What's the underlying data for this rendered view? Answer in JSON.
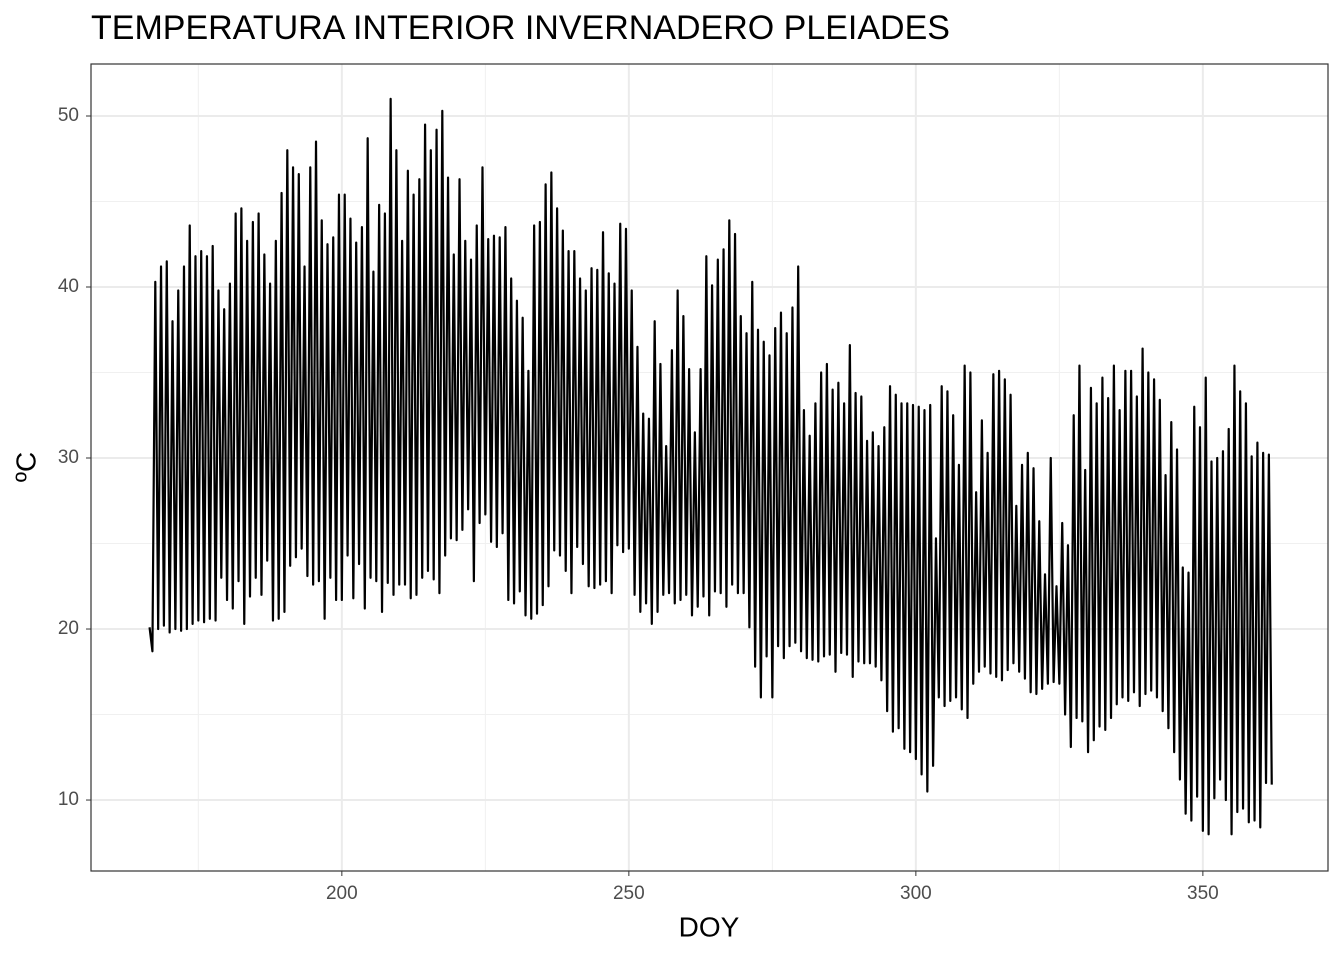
{
  "chart_data": {
    "type": "line",
    "title": "TEMPERATURA INTERIOR INVERNADERO PLEIADES",
    "x_label": "DOY",
    "y_label": "ºC",
    "xlim": [
      156.3,
      371.8
    ],
    "ylim": [
      5.85,
      53.04
    ],
    "xticks": [
      200,
      250,
      300,
      350
    ],
    "yticks": [
      10,
      20,
      30,
      40,
      50
    ],
    "grid": true,
    "x": [
      166.5,
      167,
      167.5,
      168,
      168.5,
      169,
      169.5,
      170,
      170.5,
      171,
      171.5,
      172,
      172.5,
      173,
      173.5,
      174,
      174.5,
      175,
      175.5,
      176,
      176.5,
      177,
      177.5,
      178,
      178.5,
      179,
      179.5,
      180,
      180.5,
      181,
      181.5,
      182,
      182.5,
      183,
      183.5,
      184,
      184.5,
      185,
      185.5,
      186,
      186.5,
      187,
      187.5,
      188,
      188.5,
      189,
      189.5,
      190,
      190.5,
      191,
      191.5,
      192,
      192.5,
      193,
      193.5,
      194,
      194.5,
      195,
      195.5,
      196,
      196.5,
      197,
      197.5,
      198,
      198.5,
      199,
      199.5,
      200,
      200.5,
      201,
      201.5,
      202,
      202.5,
      203,
      203.5,
      204,
      204.5,
      205,
      205.5,
      206,
      206.5,
      207,
      207.5,
      208,
      208.5,
      209,
      209.5,
      210,
      210.5,
      211,
      211.5,
      212,
      212.5,
      213,
      213.5,
      214,
      214.5,
      215,
      215.5,
      216,
      216.5,
      217,
      217.5,
      218,
      218.5,
      219,
      219.5,
      220,
      220.5,
      221,
      221.5,
      222,
      222.5,
      223,
      223.5,
      224,
      224.5,
      225,
      225.5,
      226,
      226.5,
      227,
      227.5,
      228,
      228.5,
      229,
      229.5,
      230,
      230.5,
      231,
      231.5,
      232,
      232.5,
      233,
      233.5,
      234,
      234.5,
      235,
      235.5,
      236,
      236.5,
      237,
      237.5,
      238,
      238.5,
      239,
      239.5,
      240,
      240.5,
      241,
      241.5,
      242,
      242.5,
      243,
      243.5,
      244,
      244.5,
      245,
      245.5,
      246,
      246.5,
      247,
      247.5,
      248,
      248.5,
      249,
      249.5,
      250,
      250.5,
      251,
      251.5,
      252,
      252.5,
      253,
      253.5,
      254,
      254.5,
      255,
      255.5,
      256,
      256.5,
      257,
      257.5,
      258,
      258.5,
      259,
      259.5,
      260,
      260.5,
      261,
      261.5,
      262,
      262.5,
      263,
      263.5,
      264,
      264.5,
      265,
      265.5,
      266,
      266.5,
      267,
      267.5,
      268,
      268.5,
      269,
      269.5,
      270,
      270.5,
      271,
      271.5,
      272,
      272.5,
      273,
      273.5,
      274,
      274.5,
      275,
      275.5,
      276,
      276.5,
      277,
      277.5,
      278,
      278.5,
      279,
      279.5,
      280,
      280.5,
      281,
      281.5,
      282,
      282.5,
      283,
      283.5,
      284,
      284.5,
      285,
      285.5,
      286,
      286.5,
      287,
      287.5,
      288,
      288.5,
      289,
      289.5,
      290,
      290.5,
      291,
      291.5,
      292,
      292.5,
      293,
      293.5,
      294,
      294.5,
      295,
      295.5,
      296,
      296.5,
      297,
      297.5,
      298,
      298.5,
      299,
      299.5,
      300,
      300.5,
      301,
      301.5,
      302,
      302.5,
      303,
      303.5,
      304,
      304.5,
      305,
      305.5,
      306,
      306.5,
      307,
      307.5,
      308,
      308.5,
      309,
      309.5,
      310,
      310.5,
      311,
      311.5,
      312,
      312.5,
      313,
      313.5,
      314,
      314.5,
      315,
      315.5,
      316,
      316.5,
      317,
      317.5,
      318,
      318.5,
      319,
      319.5,
      320,
      320.5,
      321,
      321.5,
      322,
      322.5,
      323,
      323.5,
      324,
      324.5,
      325,
      325.5,
      326,
      326.5,
      327,
      327.5,
      328,
      328.5,
      329,
      329.5,
      330,
      330.5,
      331,
      331.5,
      332,
      332.5,
      333,
      333.5,
      334,
      334.5,
      335,
      335.5,
      336,
      336.5,
      337,
      337.5,
      338,
      338.5,
      339,
      339.5,
      340,
      340.5,
      341,
      341.5,
      342,
      342.5,
      343,
      343.5,
      344,
      344.5,
      345,
      345.5,
      346,
      346.5,
      347,
      347.5,
      348,
      348.5,
      349,
      349.5,
      350,
      350.5,
      351,
      351.5,
      352,
      352.5,
      353,
      353.5,
      354,
      354.5,
      355,
      355.5,
      356,
      356.5,
      357,
      357.5,
      358,
      358.5,
      359,
      359.5,
      360,
      360.5,
      361,
      361.5,
      362
    ],
    "series": [
      {
        "color": "#000000",
        "values": [
          20.1,
          18.7,
          40.3,
          20,
          41.2,
          20.2,
          41.5,
          19.8,
          38,
          20,
          39.8,
          19.9,
          41.2,
          20,
          43.6,
          20.3,
          41.8,
          20.5,
          42.1,
          20.4,
          41.8,
          20.6,
          42.4,
          20.5,
          39.8,
          23,
          38.7,
          21.7,
          40.2,
          21.2,
          44.3,
          22.8,
          44.6,
          20.3,
          42.7,
          21.9,
          43.8,
          23,
          44.3,
          22,
          41.9,
          24,
          40.2,
          20.5,
          42.7,
          20.6,
          45.5,
          21,
          48,
          23.7,
          47,
          24.2,
          46.6,
          24.7,
          41.2,
          23.1,
          47,
          22.6,
          48.5,
          22.8,
          43.9,
          20.6,
          42.5,
          23,
          42.9,
          21.7,
          45.4,
          21.7,
          45.4,
          24.3,
          44,
          21.8,
          42.6,
          23.8,
          43.5,
          21.2,
          48.7,
          23,
          40.9,
          22.8,
          44.8,
          21,
          44.3,
          22.7,
          51,
          22,
          48,
          22.6,
          42.7,
          22.6,
          46.8,
          21.8,
          45.4,
          22,
          46.3,
          23,
          49.5,
          23.4,
          48,
          22.9,
          49.2,
          22.1,
          50.3,
          24.3,
          46.4,
          25.3,
          41.9,
          25.2,
          46.3,
          25.8,
          42.7,
          27,
          41.6,
          22.8,
          43.6,
          26.2,
          47,
          26.7,
          42.8,
          25.1,
          43,
          24.8,
          42.9,
          25.6,
          43.5,
          21.7,
          40.5,
          21.5,
          39.2,
          22.2,
          38.2,
          20.8,
          35.1,
          20.6,
          43.6,
          20.9,
          43.8,
          21.4,
          46,
          22.5,
          46.7,
          24.6,
          44.6,
          24.3,
          43.3,
          23.4,
          42.1,
          22.1,
          42.1,
          24.8,
          40.5,
          23.8,
          39.8,
          22.5,
          41.1,
          22.4,
          41,
          22.6,
          43.2,
          22.8,
          40.8,
          22.1,
          40.2,
          24.9,
          43.7,
          24.5,
          43.4,
          24.7,
          39.8,
          22,
          36.5,
          21,
          32.6,
          21.5,
          32.3,
          20.3,
          38,
          21,
          35.5,
          22,
          30.7,
          22.1,
          36.3,
          21.5,
          39.8,
          21.7,
          38.3,
          22,
          35.2,
          20.8,
          31.5,
          21.3,
          35.2,
          21.9,
          41.8,
          20.8,
          40.1,
          22.2,
          41.6,
          22.1,
          42.2,
          21.3,
          43.9,
          22.6,
          43.1,
          22.1,
          38.3,
          22.1,
          37.3,
          20.1,
          40.3,
          17.8,
          37.5,
          16,
          36.8,
          18.4,
          36,
          16,
          37.6,
          19,
          38.5,
          18.3,
          37.3,
          19,
          38.8,
          19.2,
          41.2,
          18.7,
          32.8,
          18.3,
          31.3,
          18.2,
          33.2,
          18.1,
          35,
          18.4,
          35.5,
          18.5,
          34,
          17.5,
          34.4,
          18.6,
          33.2,
          18.5,
          36.6,
          17.2,
          33.8,
          18.1,
          33.6,
          18,
          31,
          18,
          31.5,
          17.8,
          30.7,
          17,
          31.8,
          15.2,
          34.2,
          14,
          33.7,
          14.2,
          33.2,
          13,
          33.2,
          12.8,
          33.1,
          12.4,
          33,
          11.5,
          32.8,
          10.5,
          33.1,
          12,
          25.3,
          16,
          34.2,
          15.5,
          33.9,
          15.8,
          32.5,
          16,
          29.6,
          15.3,
          35.4,
          14.8,
          35,
          16.8,
          28,
          17.5,
          32.2,
          17.8,
          30.3,
          17.4,
          34.9,
          17.2,
          35.1,
          17,
          34.6,
          17.6,
          33.7,
          18,
          27.2,
          17.5,
          29.6,
          17.1,
          30.3,
          16.3,
          29.4,
          16.2,
          26.3,
          16.5,
          23.2,
          16.8,
          30,
          16.9,
          22.5,
          16.8,
          26.2,
          15,
          24.9,
          13.1,
          32.5,
          14.8,
          35.4,
          14.6,
          29.3,
          12.8,
          34.1,
          13.5,
          33.2,
          14.3,
          34.7,
          14.1,
          33.5,
          14.8,
          35.4,
          15.6,
          32.8,
          16,
          35.1,
          15.8,
          35.1,
          16.3,
          33.6,
          15.5,
          36.4,
          16.2,
          35,
          16.4,
          34.6,
          16,
          33.4,
          15.2,
          29,
          14.2,
          32.1,
          12.8,
          30.5,
          11.2,
          23.6,
          9.2,
          23.3,
          8.8,
          33,
          10.2,
          31.8,
          8.2,
          34.7,
          8,
          29.8,
          10.1,
          30,
          11.2,
          30.4,
          10,
          31.7,
          8,
          35.4,
          9.3,
          33.9,
          9.5,
          33.2,
          8.7,
          30.1,
          8.8,
          30.9,
          8.4,
          30.3,
          11,
          30.2,
          10.9
        ]
      }
    ]
  }
}
